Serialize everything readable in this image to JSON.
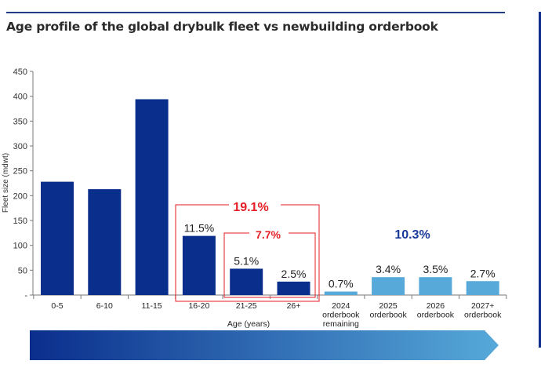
{
  "title": "Age profile of the global drybulk fleet vs newbuilding orderbook",
  "colors": {
    "fleet": "#0a2e8c",
    "orderbook": "#56a9d9",
    "highlight": "#e51e25",
    "callout_blue": "#1a3a9a",
    "title_rule": "#1f3c88"
  },
  "chart_data": {
    "type": "bar",
    "title": "Age profile of the global drybulk fleet vs newbuilding orderbook",
    "xlabel": "Age (years)",
    "ylabel": "Fleet size (mdwt)",
    "ylim": [
      0,
      450
    ],
    "yticks": [
      "-",
      "50",
      "100",
      "150",
      "200",
      "250",
      "300",
      "350",
      "400",
      "450"
    ],
    "grid": false,
    "categories": [
      [
        "0-5"
      ],
      [
        "6-10"
      ],
      [
        "11-15"
      ],
      [
        "16-20"
      ],
      [
        "21-25"
      ],
      [
        "26+"
      ],
      [
        "2024",
        "orderbook",
        "remaining"
      ],
      [
        "2025",
        "orderbook"
      ],
      [
        "2026",
        "orderbook"
      ],
      [
        "2027+",
        "orderbook"
      ]
    ],
    "values": [
      228,
      213,
      394,
      119,
      53,
      27,
      7,
      36,
      36,
      28
    ],
    "groups": [
      "fleet",
      "fleet",
      "fleet",
      "fleet",
      "fleet",
      "fleet",
      "orderbook",
      "orderbook",
      "orderbook",
      "orderbook"
    ],
    "labels": [
      "",
      "",
      "",
      "11.5%",
      "5.1%",
      "2.5%",
      "0.7%",
      "3.4%",
      "3.5%",
      "2.7%"
    ],
    "annotations": [
      {
        "text": "19.1%",
        "color": "highlight",
        "box_from": 3,
        "box_to": 5
      },
      {
        "text": "7.7%",
        "color": "highlight",
        "box_from": 4,
        "box_to": 5
      },
      {
        "text": "10.3%",
        "color": "callout_blue",
        "box_from": 6,
        "box_to": 9
      }
    ]
  }
}
